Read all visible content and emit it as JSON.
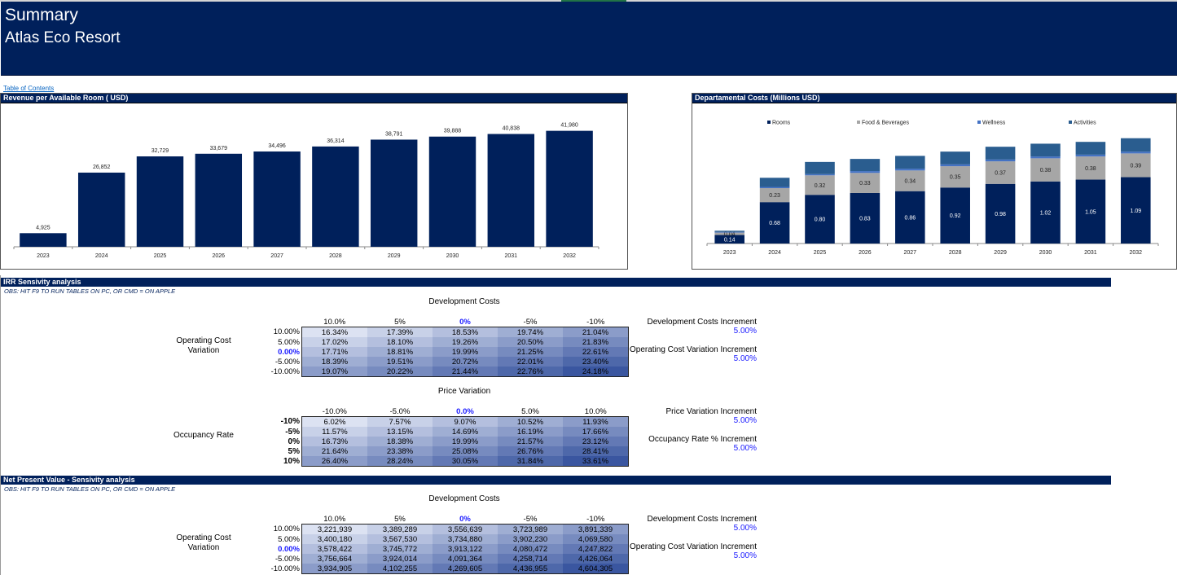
{
  "header": {
    "title": "Summary",
    "subtitle": "Atlas Eco Resort"
  },
  "toc_link": "Table of Contents",
  "colors": {
    "navy": "#00205b",
    "gray": "#a6a6a6",
    "wellness": "#4472c4",
    "activities": "#2a5d8f",
    "highlight": "#1a1aff"
  },
  "revpar_chart": {
    "panel_title": "Revenue per Available Room ( USD)",
    "chart_data": {
      "type": "bar",
      "title": "Revenue per Available Room ( USD)",
      "categories": [
        "2023",
        "2024",
        "2025",
        "2026",
        "2027",
        "2028",
        "2029",
        "2030",
        "2031",
        "2032"
      ],
      "values": [
        4925,
        26852,
        32729,
        33679,
        34496,
        36314,
        38791,
        39888,
        40838,
        41980
      ],
      "labels": [
        "4,925",
        "26,852",
        "32,729",
        "33,679",
        "34,496",
        "36,314",
        "38,791",
        "39,888",
        "40,838",
        "41,980"
      ],
      "xlabel": "",
      "ylabel": "",
      "ylim": [
        0,
        46000
      ],
      "grid": false,
      "legend": "none"
    }
  },
  "dept_chart": {
    "panel_title": "Departamental Costs (Millions USD)",
    "chart_data": {
      "type": "bar",
      "stacked": true,
      "title": "Departamental Costs (Millions USD)",
      "categories": [
        "2023",
        "2024",
        "2025",
        "2026",
        "2027",
        "2028",
        "2029",
        "2030",
        "2031",
        "2032"
      ],
      "series": [
        {
          "name": "Rooms",
          "values": [
            0.14,
            0.68,
            0.8,
            0.83,
            0.86,
            0.92,
            0.98,
            1.02,
            1.05,
            1.09
          ],
          "labels": [
            "0.14",
            "0.68",
            "0.80",
            "0.83",
            "0.86",
            "0.92",
            "0.98",
            "1.02",
            "1.05",
            "1.09"
          ]
        },
        {
          "name": "Food & Beverages",
          "values": [
            0.04,
            0.23,
            0.32,
            0.33,
            0.34,
            0.35,
            0.37,
            0.38,
            0.38,
            0.39
          ],
          "labels": [
            "0.04",
            "0.23",
            "0.32",
            "0.33",
            "0.34",
            "0.35",
            "0.37",
            "0.38",
            "0.38",
            "0.39"
          ]
        },
        {
          "name": "Wellness",
          "values": [
            0.01,
            0.02,
            0.02,
            0.03,
            0.03,
            0.03,
            0.03,
            0.03,
            0.03,
            0.03
          ]
        },
        {
          "name": "Activities",
          "values": [
            0.02,
            0.15,
            0.2,
            0.2,
            0.21,
            0.21,
            0.21,
            0.21,
            0.21,
            0.22
          ]
        }
      ],
      "ylim": [
        0,
        1.9
      ],
      "grid": false,
      "legend": "top"
    }
  },
  "irr_section": {
    "title": "IRR Sensivity analysis",
    "note": "OBS: HIT F9 TO RUN TABLES ON PC, OR CMD = ON APPLE",
    "table1": {
      "col_title": "Development Costs",
      "row_title": "Operating Cost Variation",
      "col_headers": [
        "10.0%",
        "5%",
        "0%",
        "-5%",
        "-10%"
      ],
      "row_headers": [
        "10.00%",
        "5.00%",
        "0.00%",
        "-5.00%",
        "-10.00%"
      ],
      "rows": [
        [
          "16.34%",
          "17.39%",
          "18.53%",
          "19.74%",
          "21.04%"
        ],
        [
          "17.02%",
          "18.10%",
          "19.26%",
          "20.50%",
          "21.83%"
        ],
        [
          "17.71%",
          "18.81%",
          "19.99%",
          "21.25%",
          "22.61%"
        ],
        [
          "18.39%",
          "19.51%",
          "20.72%",
          "22.01%",
          "23.40%"
        ],
        [
          "19.07%",
          "20.22%",
          "21.44%",
          "22.76%",
          "24.18%"
        ]
      ],
      "increments": [
        {
          "label": "Development Costs Increment",
          "value": "5.00%"
        },
        {
          "label": "Operating Cost Variation Increment",
          "value": "5.00%"
        }
      ]
    },
    "table2": {
      "col_title": "Price Variation",
      "row_title": "Occupancy Rate",
      "col_headers": [
        "-10.0%",
        "-5.0%",
        "0.0%",
        "5.0%",
        "10.0%"
      ],
      "row_headers": [
        "-10%",
        "-5%",
        "0%",
        "5%",
        "10%"
      ],
      "rows": [
        [
          "6.02%",
          "7.57%",
          "9.07%",
          "10.52%",
          "11.93%"
        ],
        [
          "11.57%",
          "13.15%",
          "14.69%",
          "16.19%",
          "17.66%"
        ],
        [
          "16.73%",
          "18.38%",
          "19.99%",
          "21.57%",
          "23.12%"
        ],
        [
          "21.64%",
          "23.38%",
          "25.08%",
          "26.76%",
          "28.41%"
        ],
        [
          "26.40%",
          "28.24%",
          "30.05%",
          "31.84%",
          "33.61%"
        ]
      ],
      "increments": [
        {
          "label": "Price Variation Increment",
          "value": "5.00%"
        },
        {
          "label": "Occupancy  Rate % Increment",
          "value": "5.00%"
        }
      ]
    }
  },
  "npv_section": {
    "title": "Net Present Value - Sensivity analysis",
    "note": "OBS: HIT F9 TO RUN TABLES ON PC, OR CMD = ON APPLE",
    "table1": {
      "col_title": "Development Costs",
      "row_title": "Operating Cost Variation",
      "col_headers": [
        "10.0%",
        "5%",
        "0%",
        "-5%",
        "-10%"
      ],
      "row_headers": [
        "10.00%",
        "5.00%",
        "0.00%",
        "-5.00%",
        "-10.00%"
      ],
      "rows": [
        [
          "3,221,939",
          "3,389,289",
          "3,556,639",
          "3,723,989",
          "3,891,339"
        ],
        [
          "3,400,180",
          "3,567,530",
          "3,734,880",
          "3,902,230",
          "4,069,580"
        ],
        [
          "3,578,422",
          "3,745,772",
          "3,913,122",
          "4,080,472",
          "4,247,822"
        ],
        [
          "3,756,664",
          "3,924,014",
          "4,091,364",
          "4,258,714",
          "4,426,064"
        ],
        [
          "3,934,905",
          "4,102,255",
          "4,269,605",
          "4,436,955",
          "4,604,305"
        ]
      ],
      "increments": [
        {
          "label": "Development Costs Increment",
          "value": "5.00%"
        },
        {
          "label": "Operating Cost Variation Increment",
          "value": "5.00%"
        }
      ]
    }
  }
}
